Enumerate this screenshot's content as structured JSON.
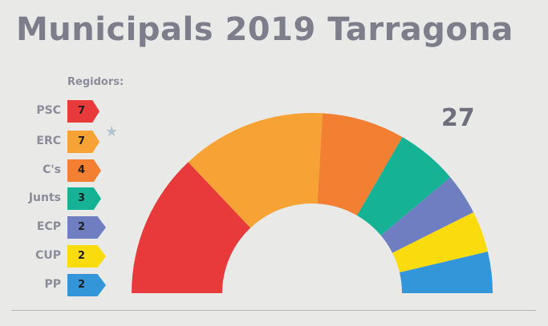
{
  "title": "Municipals 2019 Tarragona",
  "legend_title": "Regidors:",
  "total_label": "27",
  "chart_data": {
    "type": "pie",
    "title": "Municipals 2019 Tarragona",
    "subtype": "semicircle parliament",
    "total_seats": 27,
    "categories": [
      "PSC",
      "ERC",
      "C's",
      "Junts",
      "ECP",
      "CUP",
      "PP"
    ],
    "values": [
      7,
      7,
      4,
      3,
      2,
      2,
      2
    ],
    "colors": [
      "#e8393b",
      "#f7a234",
      "#f27f32",
      "#16b295",
      "#6f7ec1",
      "#fadb0e",
      "#3396d9"
    ],
    "highlighted": "ERC"
  }
}
